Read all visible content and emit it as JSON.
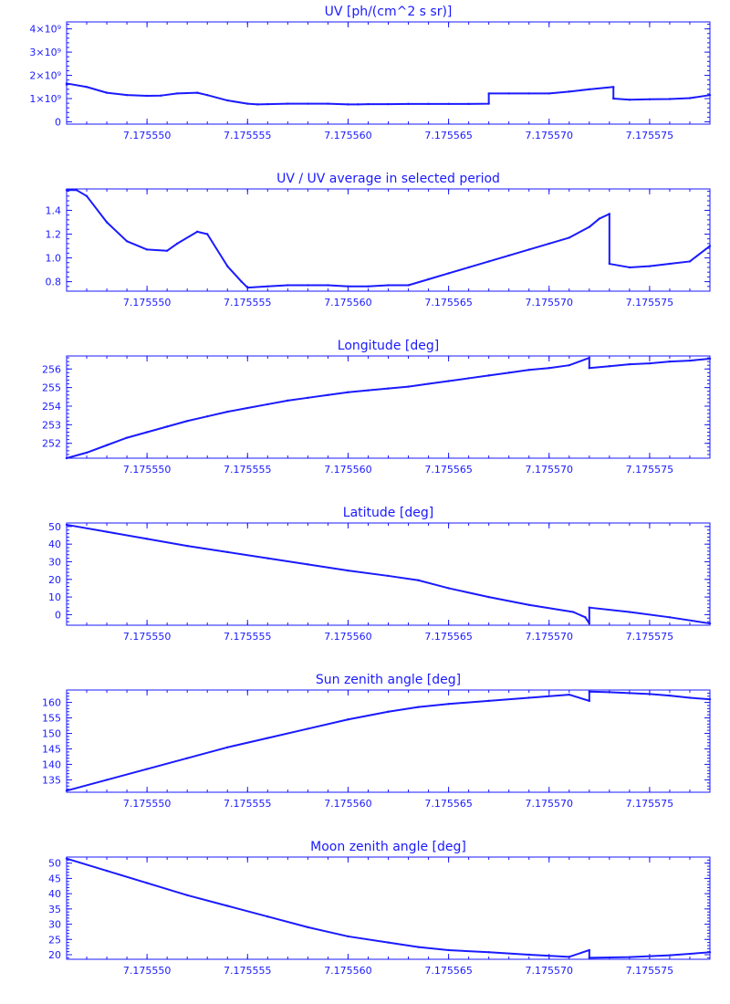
{
  "colors": {
    "ink": "#1a1aff"
  },
  "chart_data": [
    {
      "type": "line",
      "title": "UV [ph/(cm^2 s sr)]",
      "xlim": [
        7.175546,
        7.175578
      ],
      "ylim": [
        -100000000.0,
        4300000000.0
      ],
      "xticks": [
        7.17555,
        7.175555,
        7.17556,
        7.175565,
        7.17557,
        7.175575
      ],
      "xticklabels": [
        "7.175550",
        "7.175555",
        "7.175560",
        "7.175565",
        "7.175570",
        "7.175575"
      ],
      "yticks": [
        0,
        1000000000.0,
        2000000000.0,
        3000000000.0,
        4000000000.0
      ],
      "yticklabels": [
        "0",
        "1×10⁹",
        "2×10⁹",
        "3×10⁹",
        "4×10⁹"
      ],
      "x": [
        7.175546,
        7.175546,
        7.175547,
        7.175548,
        7.175549,
        7.17555,
        7.1755507,
        7.1755515,
        7.1755525,
        7.175553,
        7.175554,
        7.175555,
        7.1755555,
        7.175556,
        7.175557,
        7.175558,
        7.175559,
        7.17556,
        7.1755605,
        7.175561,
        7.175562,
        7.175563,
        7.175564,
        7.175565,
        7.175566,
        7.175567,
        7.175567,
        7.175568,
        7.175569,
        7.17557,
        7.175571,
        7.175572,
        7.1755732,
        7.1755732,
        7.175574,
        7.175575,
        7.175576,
        7.175577,
        7.175578
      ],
      "values": [
        1600000000.0,
        1650000000.0,
        1500000000.0,
        1250000000.0,
        1150000000.0,
        1120000000.0,
        1130000000.0,
        1220000000.0,
        1250000000.0,
        1150000000.0,
        920000000.0,
        780000000.0,
        750000000.0,
        760000000.0,
        780000000.0,
        780000000.0,
        780000000.0,
        750000000.0,
        750000000.0,
        760000000.0,
        760000000.0,
        770000000.0,
        770000000.0,
        770000000.0,
        770000000.0,
        780000000.0,
        1220000000.0,
        1220000000.0,
        1220000000.0,
        1220000000.0,
        1300000000.0,
        1400000000.0,
        1500000000.0,
        1000000000.0,
        950000000.0,
        970000000.0,
        980000000.0,
        1020000000.0,
        1150000000.0
      ]
    },
    {
      "type": "line",
      "title": "UV / UV average in selected period",
      "xlim": [
        7.175546,
        7.175578
      ],
      "ylim": [
        0.72,
        1.58
      ],
      "xticks": [
        7.17555,
        7.175555,
        7.17556,
        7.175565,
        7.17557,
        7.175575
      ],
      "xticklabels": [
        "7.175550",
        "7.175555",
        "7.175560",
        "7.175565",
        "7.175570",
        "7.175575"
      ],
      "yticks": [
        0.8,
        1.0,
        1.2,
        1.4
      ],
      "yticklabels": [
        "0.8",
        "1.0",
        "1.2",
        "1.4"
      ],
      "x": [
        7.175546,
        7.1755465,
        7.175547,
        7.175548,
        7.175549,
        7.17555,
        7.175551,
        7.1755515,
        7.1755525,
        7.175553,
        7.175554,
        7.1755547,
        7.175555,
        7.175556,
        7.175557,
        7.175558,
        7.175559,
        7.17556,
        7.175561,
        7.175562,
        7.175563,
        7.175564,
        7.175565,
        7.175566,
        7.175567,
        7.175568,
        7.175569,
        7.17557,
        7.175571,
        7.175572,
        7.1755725,
        7.175573,
        7.175573,
        7.175574,
        7.175575,
        7.175576,
        7.175577,
        7.175578
      ],
      "values": [
        1.57,
        1.57,
        1.52,
        1.3,
        1.14,
        1.07,
        1.06,
        1.12,
        1.22,
        1.2,
        0.93,
        0.8,
        0.75,
        0.76,
        0.77,
        0.77,
        0.77,
        0.76,
        0.76,
        0.77,
        0.77,
        0.82,
        0.87,
        0.92,
        0.97,
        1.02,
        1.07,
        1.12,
        1.17,
        1.26,
        1.33,
        1.37,
        0.95,
        0.92,
        0.93,
        0.95,
        0.97,
        1.1
      ]
    },
    {
      "type": "line",
      "title": "Longitude [deg]",
      "xlim": [
        7.175546,
        7.175578
      ],
      "ylim": [
        251.2,
        256.7
      ],
      "xticks": [
        7.17555,
        7.175555,
        7.17556,
        7.175565,
        7.17557,
        7.175575
      ],
      "xticklabels": [
        "7.175550",
        "7.175555",
        "7.175560",
        "7.175565",
        "7.175570",
        "7.175575"
      ],
      "yticks": [
        252,
        253,
        254,
        255,
        256
      ],
      "yticklabels": [
        "252",
        "253",
        "254",
        "255",
        "256"
      ],
      "x": [
        7.175546,
        7.175547,
        7.175548,
        7.175549,
        7.17555,
        7.175551,
        7.175552,
        7.175553,
        7.175554,
        7.175555,
        7.175556,
        7.175557,
        7.175558,
        7.175559,
        7.17556,
        7.175561,
        7.175562,
        7.175563,
        7.175564,
        7.175565,
        7.175566,
        7.175567,
        7.175568,
        7.175569,
        7.17557,
        7.175571,
        7.175572,
        7.175572,
        7.175573,
        7.175574,
        7.175575,
        7.175576,
        7.175577,
        7.175578
      ],
      "values": [
        251.2,
        251.5,
        251.9,
        252.3,
        252.6,
        252.9,
        253.2,
        253.45,
        253.7,
        253.9,
        254.1,
        254.3,
        254.45,
        254.6,
        254.75,
        254.85,
        254.95,
        255.05,
        255.2,
        255.35,
        255.5,
        255.65,
        255.8,
        255.95,
        256.05,
        256.2,
        256.6,
        256.05,
        256.15,
        256.25,
        256.3,
        256.4,
        256.45,
        256.55
      ]
    },
    {
      "type": "line",
      "title": "Latitude [deg]",
      "xlim": [
        7.175546,
        7.175578
      ],
      "ylim": [
        -6,
        52
      ],
      "xticks": [
        7.17555,
        7.175555,
        7.17556,
        7.175565,
        7.17557,
        7.175575
      ],
      "xticklabels": [
        "7.175550",
        "7.175555",
        "7.175560",
        "7.175565",
        "7.175570",
        "7.175575"
      ],
      "yticks": [
        0,
        10,
        20,
        30,
        40,
        50
      ],
      "yticklabels": [
        "0",
        "10",
        "20",
        "30",
        "40",
        "50"
      ],
      "x": [
        7.175546,
        7.175548,
        7.17555,
        7.175552,
        7.175554,
        7.175556,
        7.175558,
        7.17556,
        7.175562,
        7.1755635,
        7.175565,
        7.175567,
        7.175569,
        7.1755712,
        7.1755718,
        7.175572,
        7.175572,
        7.175574,
        7.175576,
        7.175578
      ],
      "values": [
        51,
        47,
        43,
        39,
        35.5,
        32,
        28.5,
        25,
        22,
        19.5,
        15,
        10,
        5.5,
        1.5,
        -1.5,
        -5,
        4,
        1.5,
        -1.5,
        -5
      ]
    },
    {
      "type": "line",
      "title": "Sun zenith angle [deg]",
      "xlim": [
        7.175546,
        7.175578
      ],
      "ylim": [
        131,
        164
      ],
      "xticks": [
        7.17555,
        7.175555,
        7.17556,
        7.175565,
        7.17557,
        7.175575
      ],
      "xticklabels": [
        "7.175550",
        "7.175555",
        "7.175560",
        "7.175565",
        "7.175570",
        "7.175575"
      ],
      "yticks": [
        135,
        140,
        145,
        150,
        155,
        160
      ],
      "yticklabels": [
        "135",
        "140",
        "145",
        "150",
        "155",
        "160"
      ],
      "x": [
        7.175546,
        7.175548,
        7.17555,
        7.175552,
        7.175554,
        7.175556,
        7.175558,
        7.17556,
        7.175562,
        7.1755635,
        7.175565,
        7.175567,
        7.175569,
        7.175571,
        7.175572,
        7.175572,
        7.175573,
        7.175574,
        7.175575,
        7.175576,
        7.175577,
        7.175578
      ],
      "values": [
        131.5,
        135,
        138.5,
        142,
        145.5,
        148.5,
        151.5,
        154.5,
        157,
        158.5,
        159.5,
        160.5,
        161.5,
        162.5,
        160.5,
        163.5,
        163.3,
        163,
        162.7,
        162.2,
        161.5,
        161
      ]
    },
    {
      "type": "line",
      "title": "Moon zenith angle [deg]",
      "xlim": [
        7.175546,
        7.175578
      ],
      "ylim": [
        18.5,
        52
      ],
      "xticks": [
        7.17555,
        7.175555,
        7.17556,
        7.175565,
        7.17557,
        7.175575
      ],
      "xticklabels": [
        "7.175550",
        "7.175555",
        "7.175560",
        "7.175565",
        "7.175570",
        "7.175575"
      ],
      "yticks": [
        20,
        25,
        30,
        35,
        40,
        45,
        50
      ],
      "yticklabels": [
        "20",
        "25",
        "30",
        "35",
        "40",
        "45",
        "50"
      ],
      "x": [
        7.175546,
        7.175548,
        7.17555,
        7.175552,
        7.175554,
        7.175556,
        7.175558,
        7.17556,
        7.175562,
        7.1755635,
        7.175565,
        7.175567,
        7.175569,
        7.175571,
        7.175572,
        7.175572,
        7.175574,
        7.175576,
        7.175578
      ],
      "values": [
        51.5,
        47.5,
        43.5,
        39.5,
        36,
        32.5,
        29,
        26,
        24,
        22.5,
        21.5,
        20.8,
        20,
        19.3,
        21.5,
        19,
        19.2,
        19.8,
        20.8
      ]
    }
  ]
}
